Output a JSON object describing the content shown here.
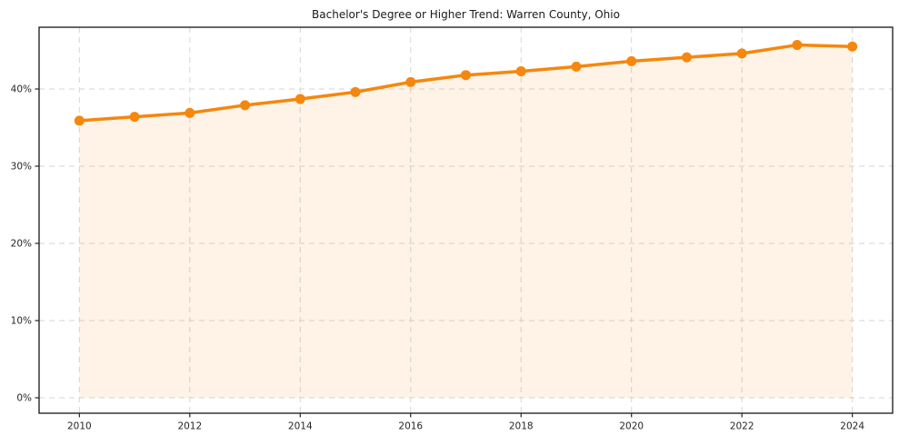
{
  "chart_data": {
    "type": "line",
    "title": "Bachelor's Degree or Higher Trend: Warren County, Ohio",
    "series_name": "Bachelor's Degree or Higher (%)",
    "x": [
      2010,
      2011,
      2012,
      2013,
      2014,
      2015,
      2016,
      2017,
      2018,
      2019,
      2020,
      2021,
      2022,
      2023,
      2024
    ],
    "values": [
      35.9,
      36.4,
      36.9,
      37.9,
      38.7,
      39.6,
      40.9,
      41.8,
      42.3,
      42.9,
      43.6,
      44.1,
      44.6,
      45.7,
      45.5
    ],
    "xlabel": "",
    "ylabel": "",
    "xlim": [
      2009.27,
      2024.73
    ],
    "ylim": [
      -2,
      48
    ],
    "xticks": [
      2010,
      2012,
      2014,
      2016,
      2018,
      2020,
      2022,
      2024
    ],
    "xtick_labels": [
      "2010",
      "2012",
      "2014",
      "2016",
      "2018",
      "2020",
      "2022",
      "2024"
    ],
    "yticks": [
      0,
      10,
      20,
      30,
      40
    ],
    "ytick_labels": [
      "0%",
      "10%",
      "20%",
      "30%",
      "40%"
    ],
    "grid": true,
    "legend": "none",
    "line_color": "#f5870e",
    "marker_color": "#f5870e",
    "fill_color": "rgba(246, 135, 14, 0.10)",
    "grid_color": "#d5d5d5",
    "spine_color": "#262626",
    "tick_color": "#262626"
  }
}
